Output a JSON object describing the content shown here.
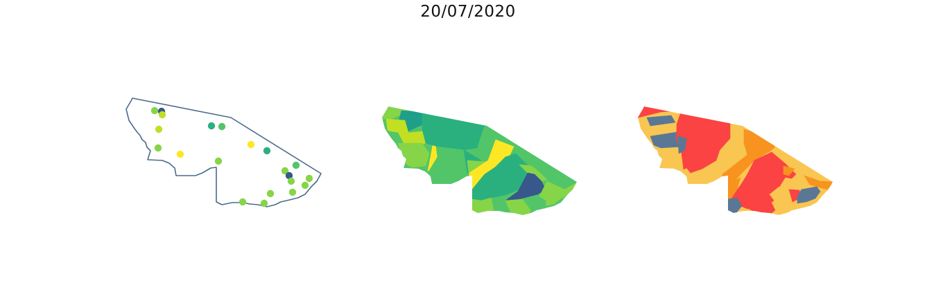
{
  "title": "20/07/2020",
  "colors": {
    "outline": "#4b6a8c",
    "viridis": [
      "#fde725",
      "#c2df23",
      "#86d549",
      "#52c569",
      "#2ab07f",
      "#1f9e89",
      "#25858e",
      "#2d708e",
      "#38588c"
    ],
    "risk": {
      "low": "#5a7896",
      "medium": "#f8c651",
      "high": "#f7931e",
      "very_high": "#fb4343"
    }
  },
  "panels": [
    {
      "name": "points-map"
    },
    {
      "name": "choropleth-viridis"
    },
    {
      "name": "choropleth-risk"
    }
  ]
}
